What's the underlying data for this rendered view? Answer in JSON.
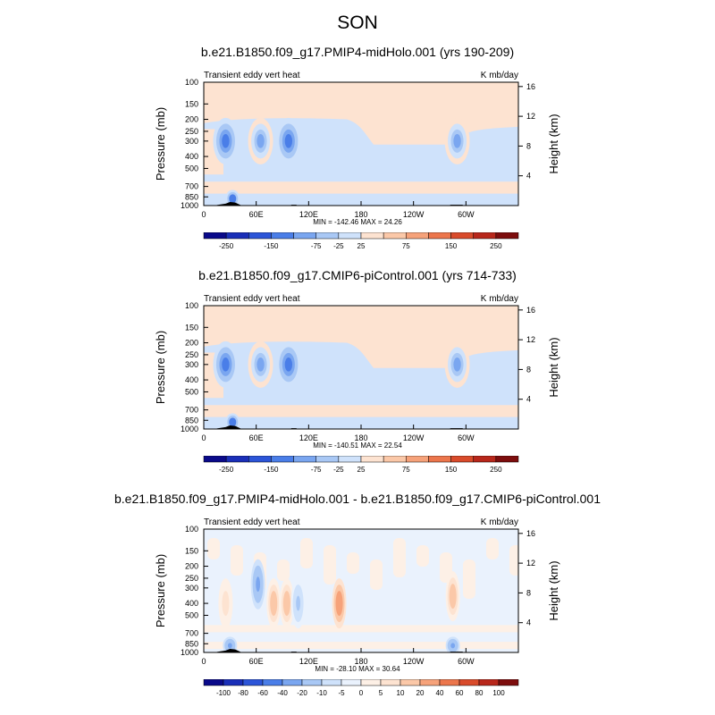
{
  "title": "SON",
  "colors": {
    "abs_scale": [
      "#0a0a8a",
      "#1a2fb8",
      "#2c55d8",
      "#4a7ee8",
      "#7aa6f0",
      "#a9c8f5",
      "#cfe2fb",
      "#fde3d1",
      "#fbc8a8",
      "#f6a27a",
      "#ec764c",
      "#d94b2b",
      "#b8271b",
      "#7d0d0d"
    ],
    "diff_scale": [
      "#0a0a8a",
      "#1a2fb8",
      "#2c55d8",
      "#4a7ee8",
      "#7aa6f0",
      "#a9c8f5",
      "#cfe2fb",
      "#eaf2fd",
      "#fdf0e6",
      "#fde3d1",
      "#fbc8a8",
      "#f6a27a",
      "#ec764c",
      "#d94b2b",
      "#b8271b",
      "#7d0d0d"
    ]
  },
  "panels": [
    {
      "title": "b.e21.B1850.f09_g17.PMIP4-midHolo.001 (yrs 190-209)",
      "left_label": "Transient eddy vert heat",
      "right_label": "K mb/day",
      "stats": "MIN = -142.46   MAX =  24.26",
      "cbar_labels": [
        "-250",
        "-150",
        "-75",
        "-25",
        "25",
        "75",
        "150",
        "250"
      ]
    },
    {
      "title": "b.e21.B1850.f09_g17.CMIP6-piControl.001 (yrs 714-733)",
      "left_label": "Transient eddy vert heat",
      "right_label": "K mb/day",
      "stats": "MIN = -140.51   MAX =  22.54",
      "cbar_labels": [
        "-250",
        "-150",
        "-75",
        "-25",
        "25",
        "75",
        "150",
        "250"
      ]
    },
    {
      "title": "b.e21.B1850.f09_g17.PMIP4-midHolo.001 - b.e21.B1850.f09_g17.CMIP6-piControl.001",
      "left_label": "Transient eddy vert heat",
      "right_label": "K mb/day",
      "stats": "MIN = -28.10   MAX =  30.64",
      "cbar_labels": [
        "-100",
        "-80",
        "-60",
        "-40",
        "-20",
        "-10",
        "-5",
        "0",
        "5",
        "10",
        "20",
        "40",
        "60",
        "80",
        "100"
      ]
    }
  ],
  "axes": {
    "ylabel": "Pressure (mb)",
    "ylabel_right": "Height (km)",
    "pressure_ticks": [
      "100",
      "150",
      "200",
      "250",
      "300",
      "400",
      "500",
      "700",
      "850",
      "1000"
    ],
    "height_ticks": [
      "16",
      "12",
      "8",
      "4"
    ],
    "lon_ticks": [
      "0",
      "60E",
      "120E",
      "180",
      "120W",
      "60W"
    ]
  },
  "chart_data": [
    {
      "type": "heatmap",
      "title": "b.e21.B1850.f09_g17.PMIP4-midHolo.001 (yrs 190-209)",
      "x_axis": "longitude",
      "y_axis": "pressure (mb)",
      "x_ticks": [
        "0",
        "60E",
        "120E",
        "180",
        "120W",
        "60W"
      ],
      "y_ticks": [
        100,
        150,
        200,
        250,
        300,
        400,
        500,
        700,
        850,
        1000
      ],
      "min": -142.46,
      "max": 24.26,
      "levels": [
        -250,
        -200,
        -150,
        -100,
        -75,
        -50,
        -25,
        25,
        50,
        75,
        100,
        150,
        200,
        250
      ],
      "features": [
        {
          "lon": 25,
          "p": 300,
          "value": -120
        },
        {
          "lon": 65,
          "p": 300,
          "value": -90
        },
        {
          "lon": 97,
          "p": 300,
          "value": -110
        },
        {
          "lon": 290,
          "p": 300,
          "value": -80
        },
        {
          "lon": 33,
          "p": 880,
          "value": -140
        }
      ]
    },
    {
      "type": "heatmap",
      "title": "b.e21.B1850.f09_g17.CMIP6-piControl.001 (yrs 714-733)",
      "x_axis": "longitude",
      "y_axis": "pressure (mb)",
      "x_ticks": [
        "0",
        "60E",
        "120E",
        "180",
        "120W",
        "60W"
      ],
      "y_ticks": [
        100,
        150,
        200,
        250,
        300,
        400,
        500,
        700,
        850,
        1000
      ],
      "min": -140.51,
      "max": 22.54,
      "levels": [
        -250,
        -200,
        -150,
        -100,
        -75,
        -50,
        -25,
        25,
        50,
        75,
        100,
        150,
        200,
        250
      ],
      "features": [
        {
          "lon": 25,
          "p": 300,
          "value": -120
        },
        {
          "lon": 65,
          "p": 300,
          "value": -90
        },
        {
          "lon": 97,
          "p": 300,
          "value": -110
        },
        {
          "lon": 290,
          "p": 300,
          "value": -80
        },
        {
          "lon": 33,
          "p": 880,
          "value": -138
        }
      ]
    },
    {
      "type": "heatmap",
      "title": "b.e21.B1850.f09_g17.PMIP4-midHolo.001 - b.e21.B1850.f09_g17.CMIP6-piControl.001",
      "x_axis": "longitude",
      "y_axis": "pressure (mb)",
      "x_ticks": [
        "0",
        "60E",
        "120E",
        "180",
        "120W",
        "60W"
      ],
      "y_ticks": [
        100,
        150,
        200,
        250,
        300,
        400,
        500,
        700,
        850,
        1000
      ],
      "min": -28.1,
      "max": 30.64,
      "levels": [
        -100,
        -80,
        -60,
        -40,
        -20,
        -10,
        -5,
        0,
        5,
        10,
        20,
        40,
        60,
        80,
        100
      ],
      "features": [
        {
          "lon": 25,
          "p": 400,
          "value": 10
        },
        {
          "lon": 62,
          "p": 280,
          "value": -20
        },
        {
          "lon": 80,
          "p": 400,
          "value": 15
        },
        {
          "lon": 95,
          "p": 400,
          "value": 20
        },
        {
          "lon": 108,
          "p": 400,
          "value": -10
        },
        {
          "lon": 155,
          "p": 400,
          "value": 30
        },
        {
          "lon": 285,
          "p": 350,
          "value": 18
        },
        {
          "lon": 30,
          "p": 880,
          "value": -25
        },
        {
          "lon": 285,
          "p": 880,
          "value": -20
        }
      ]
    }
  ]
}
